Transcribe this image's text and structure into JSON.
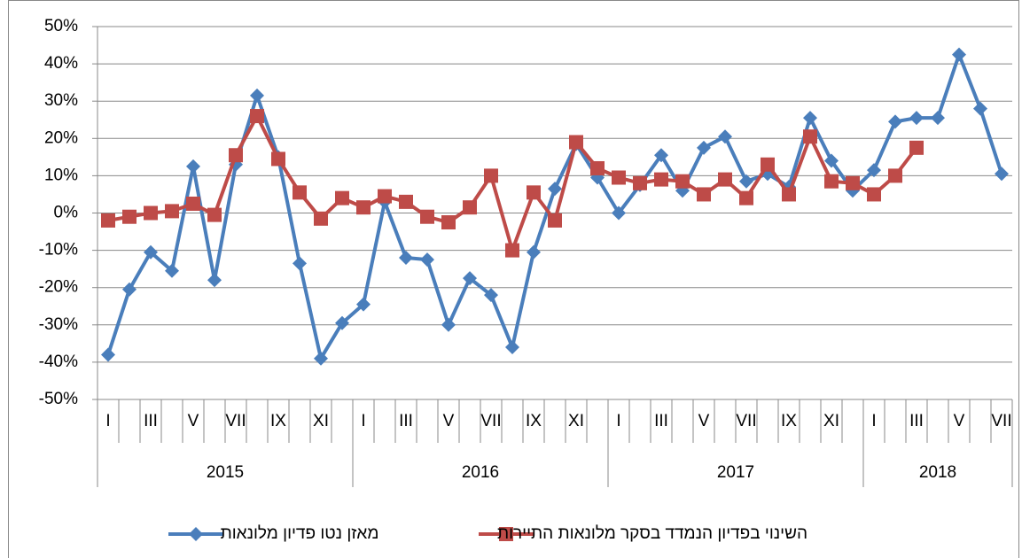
{
  "chart_data": {
    "type": "line",
    "categories": [
      "I",
      null,
      "III",
      null,
      "V",
      null,
      "VII",
      null,
      "IX",
      null,
      "XI",
      null,
      "I",
      null,
      "III",
      null,
      "V",
      null,
      "VII",
      null,
      "IX",
      null,
      "XI",
      null,
      "I",
      null,
      "III",
      null,
      "V",
      null,
      "VII",
      null,
      "IX",
      null,
      "XI",
      null,
      "I",
      null,
      "III",
      null,
      "V",
      null,
      "VII"
    ],
    "year_groups": [
      "2015",
      "2016",
      "2017",
      "2018"
    ],
    "series": [
      {
        "name": "מאזן נטו פדיון מלונאות",
        "color": "#4a7ebb",
        "marker": "diamond",
        "values": [
          -38,
          -20.5,
          -10.5,
          -15.5,
          12.5,
          -18,
          13,
          31.5,
          15,
          -13.5,
          -39,
          -29.5,
          -24.5,
          3,
          -12,
          -12.5,
          -30,
          -17.5,
          -22,
          -36,
          -10.5,
          6.5,
          18.5,
          9.5,
          0,
          7.5,
          15.5,
          6,
          17.5,
          20.5,
          8.5,
          10.5,
          7,
          25.5,
          14,
          6,
          11.5,
          24.5,
          25.5,
          25.5,
          42.5,
          28,
          10.5
        ]
      },
      {
        "name": "השינוי בפדיון הנמדד בסקר מלונאות  התיירות",
        "color": "#be4b48",
        "marker": "square",
        "values": [
          -2,
          -1,
          0,
          0.5,
          2.5,
          -0.5,
          15.5,
          26,
          14.5,
          5.5,
          -1.5,
          4,
          1.5,
          4.5,
          3,
          -1,
          -2.5,
          1.5,
          10,
          -10,
          5.5,
          -2,
          19,
          12,
          9.5,
          8,
          9,
          8.5,
          5,
          9,
          4,
          13,
          5,
          20.5,
          8.5,
          8,
          5,
          10,
          17.5,
          null,
          null,
          null,
          null
        ]
      }
    ],
    "ylim": [
      -50,
      50
    ],
    "yticks": [
      {
        "value": -50,
        "label": "-50%"
      },
      {
        "value": -40,
        "label": "-40%"
      },
      {
        "value": -30,
        "label": "-30%"
      },
      {
        "value": -20,
        "label": "-20%"
      },
      {
        "value": -10,
        "label": "-10%"
      },
      {
        "value": 0,
        "label": "0%"
      },
      {
        "value": 10,
        "label": "10%"
      },
      {
        "value": 20,
        "label": "20%"
      },
      {
        "value": 30,
        "label": "30%"
      },
      {
        "value": 40,
        "label": "40%"
      },
      {
        "value": 50,
        "label": "50%"
      }
    ],
    "grid": true
  }
}
